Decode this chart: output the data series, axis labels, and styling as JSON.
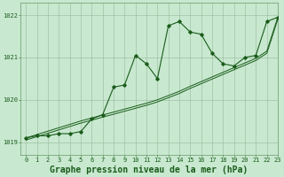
{
  "title": "Graphe pression niveau de la mer (hPa)",
  "bg_color": "#c8e8d0",
  "grid_color": "#99bb99",
  "line_color": "#1a5c1a",
  "xlim": [
    -0.5,
    23
  ],
  "ylim": [
    1018.7,
    1022.3
  ],
  "yticks": [
    1019,
    1020,
    1021,
    1022
  ],
  "xticks": [
    0,
    1,
    2,
    3,
    4,
    5,
    6,
    7,
    8,
    9,
    10,
    11,
    12,
    13,
    14,
    15,
    16,
    17,
    18,
    19,
    20,
    21,
    22,
    23
  ],
  "main_data": [
    1019.1,
    1019.15,
    1019.15,
    1019.2,
    1019.2,
    1019.25,
    1019.55,
    1019.65,
    1020.3,
    1020.35,
    1021.05,
    1020.85,
    1020.5,
    1021.75,
    1021.85,
    1021.6,
    1021.55,
    1021.1,
    1020.85,
    1020.8,
    1021.0,
    1021.05,
    1021.85,
    1021.95
  ],
  "trend1_data": [
    1019.1,
    1019.18,
    1019.26,
    1019.34,
    1019.42,
    1019.5,
    1019.57,
    1019.64,
    1019.71,
    1019.78,
    1019.85,
    1019.92,
    1020.0,
    1020.1,
    1020.2,
    1020.32,
    1020.43,
    1020.54,
    1020.65,
    1020.76,
    1020.87,
    1020.98,
    1021.15,
    1021.95
  ],
  "trend2_data": [
    1019.05,
    1019.13,
    1019.21,
    1019.29,
    1019.37,
    1019.45,
    1019.52,
    1019.59,
    1019.66,
    1019.73,
    1019.8,
    1019.87,
    1019.95,
    1020.05,
    1020.15,
    1020.27,
    1020.38,
    1020.49,
    1020.6,
    1020.71,
    1020.82,
    1020.93,
    1021.1,
    1021.9
  ],
  "title_fontsize": 7,
  "tick_fontsize": 5,
  "title_color": "#1a5c1a",
  "tick_color": "#1a5c1a",
  "spine_color": "#669966"
}
